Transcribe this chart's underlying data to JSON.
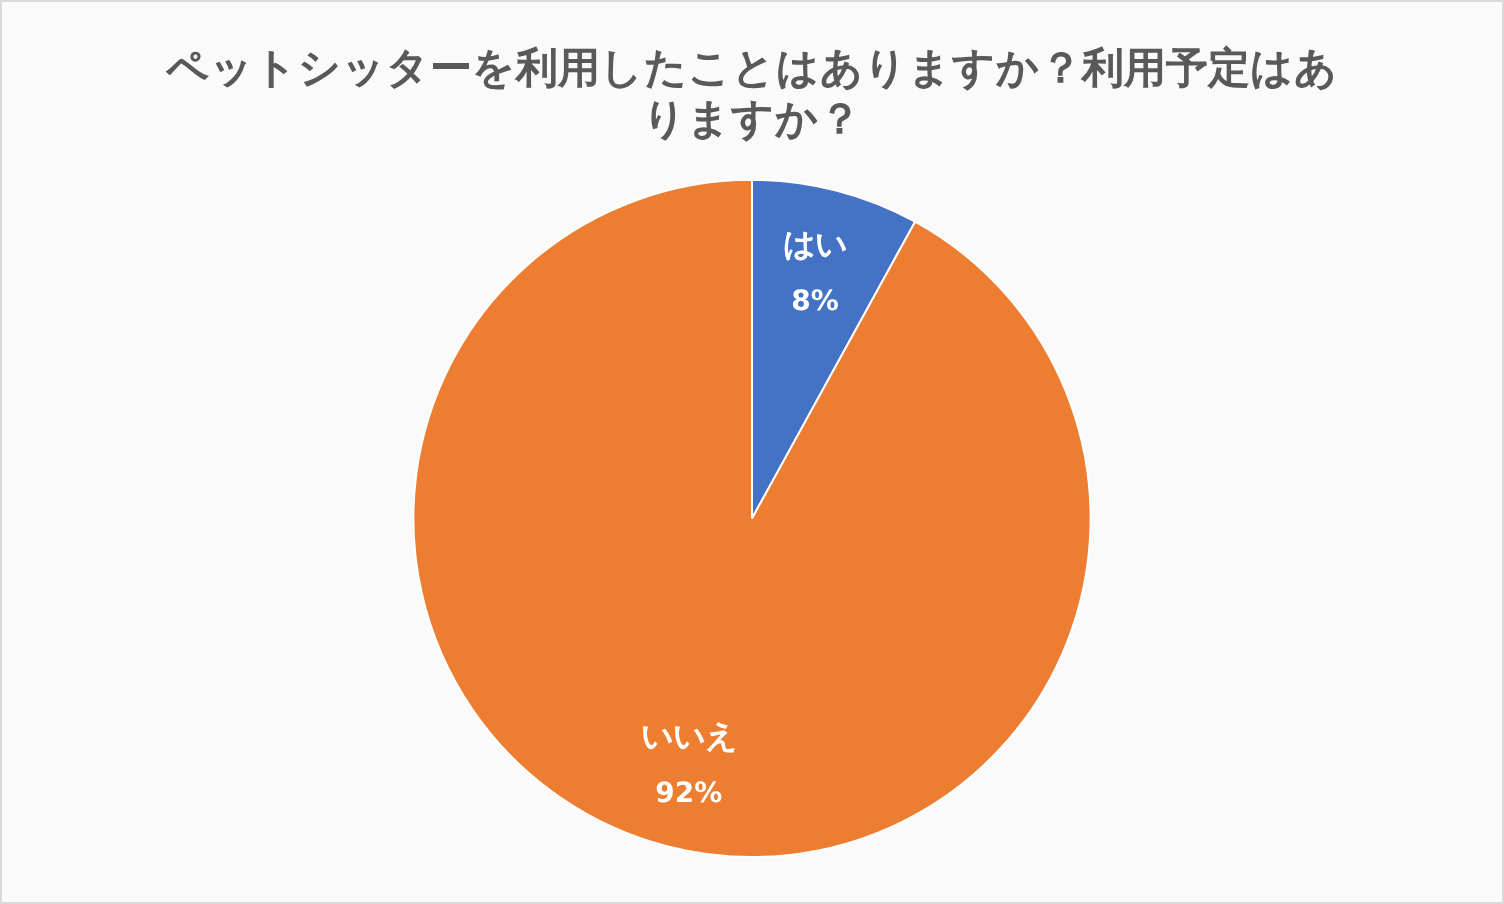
{
  "chart_data": {
    "type": "pie",
    "title": "ペットシッターを利用したことはありますか？利用予定はありますか？",
    "categories": [
      "はい",
      "いいえ"
    ],
    "values": [
      8,
      92
    ],
    "colors": [
      "#4472c4",
      "#ed7d31"
    ],
    "value_labels": [
      "8%",
      "92%"
    ],
    "legend": false
  }
}
